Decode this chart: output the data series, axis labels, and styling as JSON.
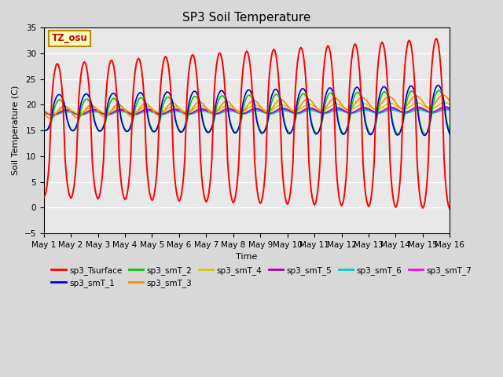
{
  "title": "SP3 Soil Temperature",
  "xlabel": "Time",
  "ylabel": "Soil Temperature (C)",
  "ylim": [
    -5,
    35
  ],
  "xlim": [
    0,
    15
  ],
  "x_tick_labels": [
    "May 1",
    "May 2",
    "May 3",
    "May 4",
    "May 5",
    "May 6",
    "May 7",
    "May 8",
    "May 9",
    "May 10",
    "May 11",
    "May 12",
    "May 13",
    "May 14",
    "May 15",
    "May 16"
  ],
  "annotation_text": "TZ_osu",
  "annotation_box_facecolor": "#ffffc0",
  "annotation_box_edgecolor": "#bb8800",
  "series_colors": {
    "sp3_Tsurface": "#ff0000",
    "sp3_smT_1": "#0000cc",
    "sp3_smT_2": "#00cc00",
    "sp3_smT_3": "#ff8800",
    "sp3_smT_4": "#cccc00",
    "sp3_smT_5": "#aa00aa",
    "sp3_smT_6": "#00cccc",
    "sp3_smT_7": "#ff00ff"
  },
  "background_color": "#e8e8e8",
  "grid_color": "#ffffff",
  "title_fontsize": 11,
  "label_fontsize": 8,
  "tick_fontsize": 7.5
}
